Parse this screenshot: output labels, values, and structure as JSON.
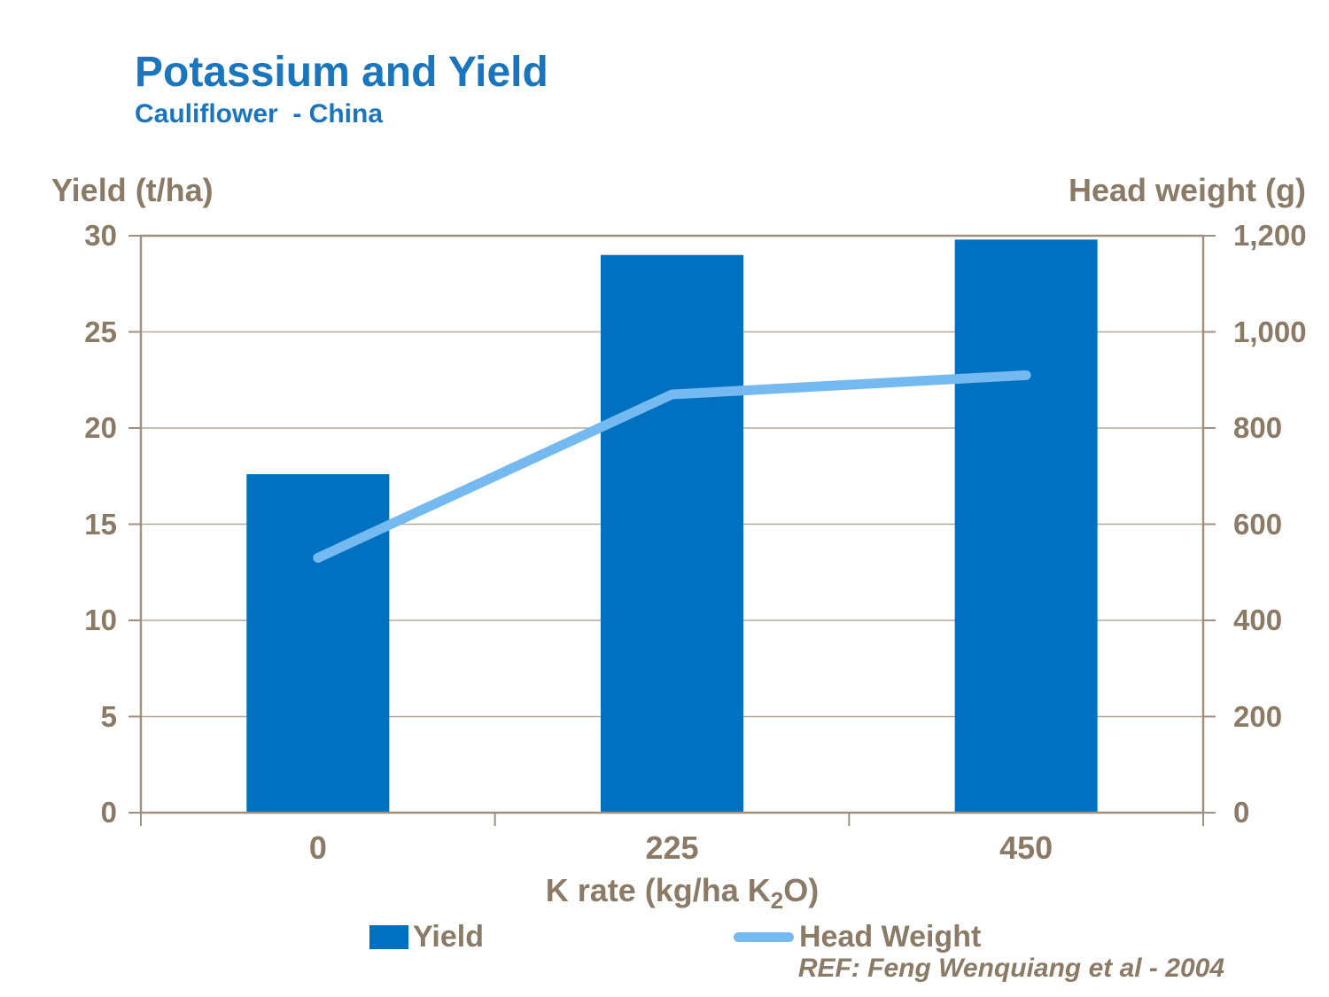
{
  "header": {
    "title": "Potassium and Yield",
    "subtitle": "Cauliflower  - China"
  },
  "axes": {
    "left_title": "Yield (t/ha)",
    "right_title": "Head weight (g)",
    "x_title": {
      "pre": "K rate (kg/ha K",
      "sub": "2",
      "post": "O)"
    }
  },
  "legend": {
    "yield_label": "Yield",
    "head_label": "Head Weight"
  },
  "reference": "REF: Feng Wenquiang et al - 2004",
  "colors": {
    "title_blue": "#1B75BC",
    "text_taupe": "#8A7A66",
    "bar_blue": "#0070C0",
    "line_blue": "#74B9F0",
    "grid": "#B5AA9C",
    "frame": "#A09080"
  },
  "chart_data": {
    "type": "combo",
    "title": "Potassium and Yield",
    "subtitle": "Cauliflower - China",
    "xlabel": "K rate (kg/ha K2O)",
    "categories": [
      "0",
      "225",
      "450"
    ],
    "series": [
      {
        "name": "Yield",
        "type": "bar",
        "axis": "left",
        "values": [
          17.6,
          29.0,
          29.8
        ]
      },
      {
        "name": "Head Weight",
        "type": "line",
        "axis": "right",
        "values": [
          530,
          870,
          910
        ]
      }
    ],
    "left_axis": {
      "label": "Yield (t/ha)",
      "min": 0,
      "max": 30,
      "ticks": [
        0,
        5,
        10,
        15,
        20,
        25,
        30
      ],
      "tick_labels": [
        "0",
        "5",
        "10",
        "15",
        "20",
        "25",
        "30"
      ]
    },
    "right_axis": {
      "label": "Head weight (g)",
      "min": 0,
      "max": 1200,
      "ticks": [
        0,
        200,
        400,
        600,
        800,
        1000,
        1200
      ],
      "tick_labels": [
        "0",
        "200",
        "400",
        "600",
        "800",
        "1,000",
        "1,200"
      ]
    },
    "grid": true,
    "legend_position": "bottom"
  }
}
